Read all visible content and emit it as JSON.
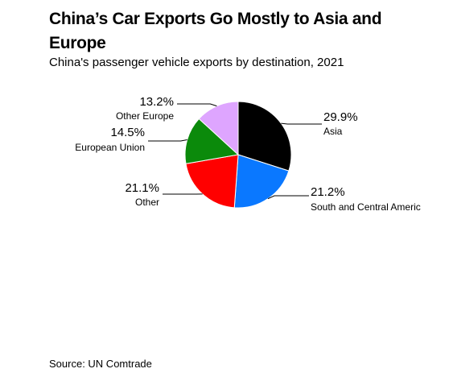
{
  "title": "China’s Car Exports Go Mostly to Asia and Europe",
  "subtitle": "China's passenger vehicle exports by destination, 2021",
  "source": "Source: UN Comtrade",
  "chart_data": {
    "type": "pie",
    "title": "China’s Car Exports Go Mostly to Asia and Europe",
    "subtitle": "China's passenger vehicle exports by destination, 2021",
    "slices": [
      {
        "label": "Asia",
        "value": 29.9,
        "display": "29.9%",
        "color": "#000000"
      },
      {
        "label": "South and Central Americ",
        "value": 21.2,
        "display": "21.2%",
        "color": "#0a78ff"
      },
      {
        "label": "Other",
        "value": 21.1,
        "display": "21.1%",
        "color": "#ff0000"
      },
      {
        "label": "European Union",
        "value": 14.5,
        "display": "14.5%",
        "color": "#0b8a0b"
      },
      {
        "label": "Other Europe",
        "value": 13.2,
        "display": "13.2%",
        "color": "#dea5ff"
      }
    ],
    "start": "12 o'clock",
    "direction": "clockwise",
    "legend": "none (direct labels)"
  }
}
